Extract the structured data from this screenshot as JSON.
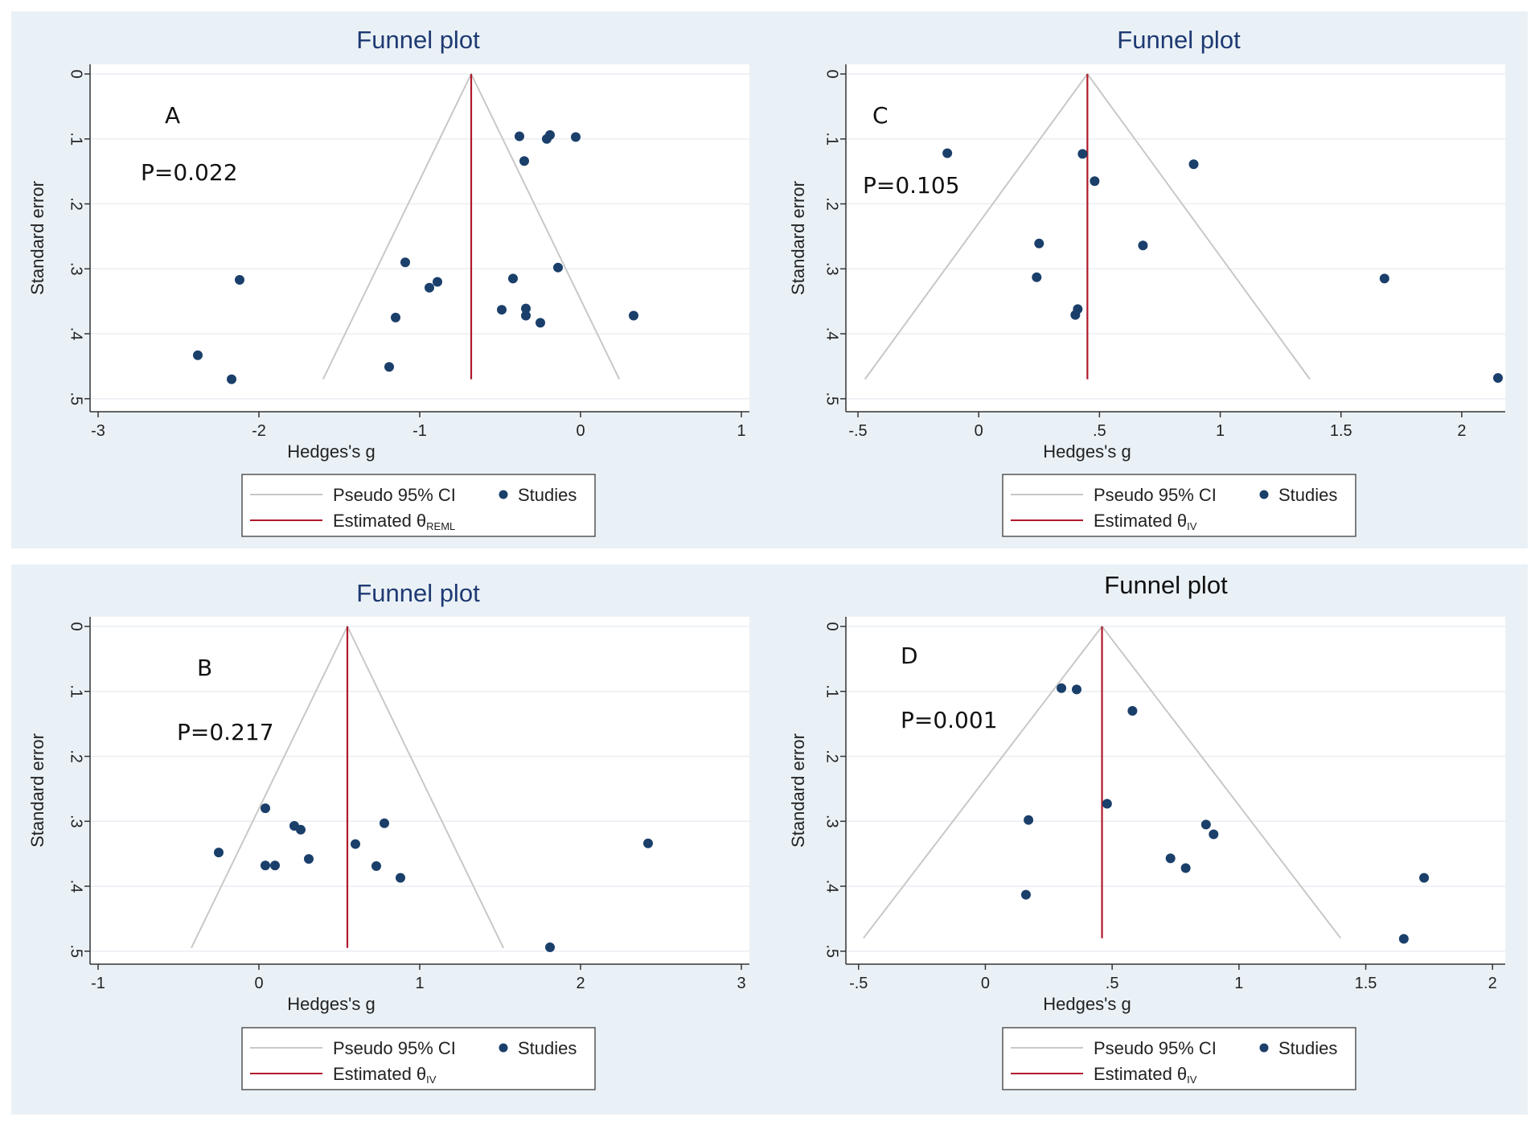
{
  "chart_data": [
    {
      "id": "A",
      "type": "scatter",
      "title": "Funnel plot",
      "title_color": "#1e3a73",
      "xlabel": "Hedges's g",
      "ylabel": "Standard error",
      "xlim": [
        -3.05,
        1.05
      ],
      "ylim": [
        0,
        0.52
      ],
      "xticks": [
        -3,
        -2,
        -1,
        0,
        1
      ],
      "xtick_labels": [
        "-3",
        "-2",
        "-1",
        "0",
        "1"
      ],
      "yticks": [
        0,
        0.1,
        0.2,
        0.3,
        0.4,
        0.5
      ],
      "ytick_labels": [
        "0",
        ".1",
        ".2",
        ".3",
        ".4",
        ".5"
      ],
      "panel_label": "A",
      "p_value": "P=0.022",
      "estimate": -0.68,
      "funnel_se_max": 0.47,
      "legend": {
        "ci_label": "Pseudo 95% CI",
        "studies_label": "Studies",
        "estimate_label": "Estimated θ",
        "estimate_subscript": "REML"
      },
      "points": [
        {
          "x": -0.38,
          "y": 0.096
        },
        {
          "x": -0.19,
          "y": 0.094
        },
        {
          "x": -0.21,
          "y": 0.1
        },
        {
          "x": -0.03,
          "y": 0.097
        },
        {
          "x": -0.35,
          "y": 0.134
        },
        {
          "x": -1.09,
          "y": 0.29
        },
        {
          "x": -0.14,
          "y": 0.298
        },
        {
          "x": -0.42,
          "y": 0.315
        },
        {
          "x": -2.12,
          "y": 0.317
        },
        {
          "x": -0.89,
          "y": 0.32
        },
        {
          "x": -0.94,
          "y": 0.329
        },
        {
          "x": -0.49,
          "y": 0.363
        },
        {
          "x": -0.34,
          "y": 0.361
        },
        {
          "x": -0.34,
          "y": 0.372
        },
        {
          "x": 0.33,
          "y": 0.372
        },
        {
          "x": -1.15,
          "y": 0.375
        },
        {
          "x": -0.25,
          "y": 0.383
        },
        {
          "x": -2.38,
          "y": 0.433
        },
        {
          "x": -1.19,
          "y": 0.451
        },
        {
          "x": -2.17,
          "y": 0.47
        }
      ]
    },
    {
      "id": "C",
      "type": "scatter",
      "title": "Funnel plot",
      "title_color": "#1e3a73",
      "xlabel": "Hedges's g",
      "ylabel": "Standard error",
      "xlim": [
        -0.55,
        2.18
      ],
      "ylim": [
        0,
        0.52
      ],
      "xticks": [
        -0.5,
        0,
        0.5,
        1,
        1.5,
        2
      ],
      "xtick_labels": [
        "-.5",
        "0",
        ".5",
        "1",
        "1.5",
        "2"
      ],
      "yticks": [
        0,
        0.1,
        0.2,
        0.3,
        0.4,
        0.5
      ],
      "ytick_labels": [
        "0",
        ".1",
        ".2",
        ".3",
        ".4",
        ".5"
      ],
      "panel_label": "C",
      "p_value": "P=0.105",
      "estimate": 0.45,
      "funnel_se_max": 0.47,
      "legend": {
        "ci_label": "Pseudo 95% CI",
        "studies_label": "Studies",
        "estimate_label": "Estimated θ",
        "estimate_subscript": "IV"
      },
      "points": [
        {
          "x": -0.13,
          "y": 0.122
        },
        {
          "x": 0.43,
          "y": 0.123
        },
        {
          "x": 0.89,
          "y": 0.139
        },
        {
          "x": 0.48,
          "y": 0.165
        },
        {
          "x": 0.25,
          "y": 0.261
        },
        {
          "x": 0.68,
          "y": 0.264
        },
        {
          "x": 0.24,
          "y": 0.313
        },
        {
          "x": 1.68,
          "y": 0.315
        },
        {
          "x": 0.41,
          "y": 0.362
        },
        {
          "x": 0.4,
          "y": 0.371
        },
        {
          "x": 2.15,
          "y": 0.468
        }
      ]
    },
    {
      "id": "B",
      "type": "scatter",
      "title": "Funnel plot",
      "title_color": "#1e3a73",
      "xlabel": "Hedges's g",
      "ylabel": "Standard error",
      "xlim": [
        -1.05,
        3.05
      ],
      "ylim": [
        0,
        0.52
      ],
      "xticks": [
        -1,
        0,
        1,
        2,
        3
      ],
      "xtick_labels": [
        "-1",
        "0",
        "1",
        "2",
        "3"
      ],
      "yticks": [
        0,
        0.1,
        0.2,
        0.3,
        0.4,
        0.5
      ],
      "ytick_labels": [
        "0",
        ".1",
        ".2",
        ".3",
        ".4",
        ".5"
      ],
      "panel_label": "B",
      "p_value": "P=0.217",
      "estimate": 0.55,
      "funnel_se_max": 0.495,
      "legend": {
        "ci_label": "Pseudo 95% CI",
        "studies_label": "Studies",
        "estimate_label": "Estimated θ",
        "estimate_subscript": "IV"
      },
      "points": [
        {
          "x": 0.04,
          "y": 0.28
        },
        {
          "x": 0.78,
          "y": 0.303
        },
        {
          "x": 0.22,
          "y": 0.307
        },
        {
          "x": 0.26,
          "y": 0.313
        },
        {
          "x": 2.42,
          "y": 0.334
        },
        {
          "x": 0.6,
          "y": 0.335
        },
        {
          "x": -0.25,
          "y": 0.348
        },
        {
          "x": 0.31,
          "y": 0.358
        },
        {
          "x": 0.04,
          "y": 0.368
        },
        {
          "x": 0.1,
          "y": 0.368
        },
        {
          "x": 0.73,
          "y": 0.369
        },
        {
          "x": 0.88,
          "y": 0.387
        },
        {
          "x": 1.81,
          "y": 0.494
        }
      ]
    },
    {
      "id": "D",
      "type": "scatter",
      "title": "Funnel plot",
      "title_color": "#111111",
      "xlabel": "Hedges's g",
      "ylabel": "Standard error",
      "xlim": [
        -0.55,
        2.05
      ],
      "ylim": [
        0,
        0.52
      ],
      "xticks": [
        -0.5,
        0,
        0.5,
        1,
        1.5,
        2
      ],
      "xtick_labels": [
        "-.5",
        "0",
        ".5",
        "1",
        "1.5",
        "2"
      ],
      "yticks": [
        0,
        0.1,
        0.2,
        0.3,
        0.4,
        0.5
      ],
      "ytick_labels": [
        "0",
        ".1",
        ".2",
        ".3",
        ".4",
        ".5"
      ],
      "panel_label": "D",
      "p_value": "P=0.001",
      "estimate": 0.46,
      "funnel_se_max": 0.48,
      "legend": {
        "ci_label": "Pseudo 95% CI",
        "studies_label": "Studies",
        "estimate_label": "Estimated θ",
        "estimate_subscript": "IV"
      },
      "points": [
        {
          "x": 0.3,
          "y": 0.095
        },
        {
          "x": 0.36,
          "y": 0.097
        },
        {
          "x": 0.58,
          "y": 0.13
        },
        {
          "x": 0.48,
          "y": 0.273
        },
        {
          "x": 0.17,
          "y": 0.298
        },
        {
          "x": 0.87,
          "y": 0.305
        },
        {
          "x": 0.9,
          "y": 0.32
        },
        {
          "x": 0.73,
          "y": 0.357
        },
        {
          "x": 0.79,
          "y": 0.372
        },
        {
          "x": 1.73,
          "y": 0.387
        },
        {
          "x": 0.16,
          "y": 0.413
        },
        {
          "x": 1.65,
          "y": 0.481
        }
      ]
    }
  ],
  "colors": {
    "outer_background": "#eaf1f6",
    "plot_background": "#ffffff",
    "gridline": "#e9eef3",
    "funnel": "#c8c8c8",
    "estimate_line": "#b0182b",
    "marker": "#1a3f6a",
    "legend_border": "#555555",
    "axis": "#333333"
  }
}
